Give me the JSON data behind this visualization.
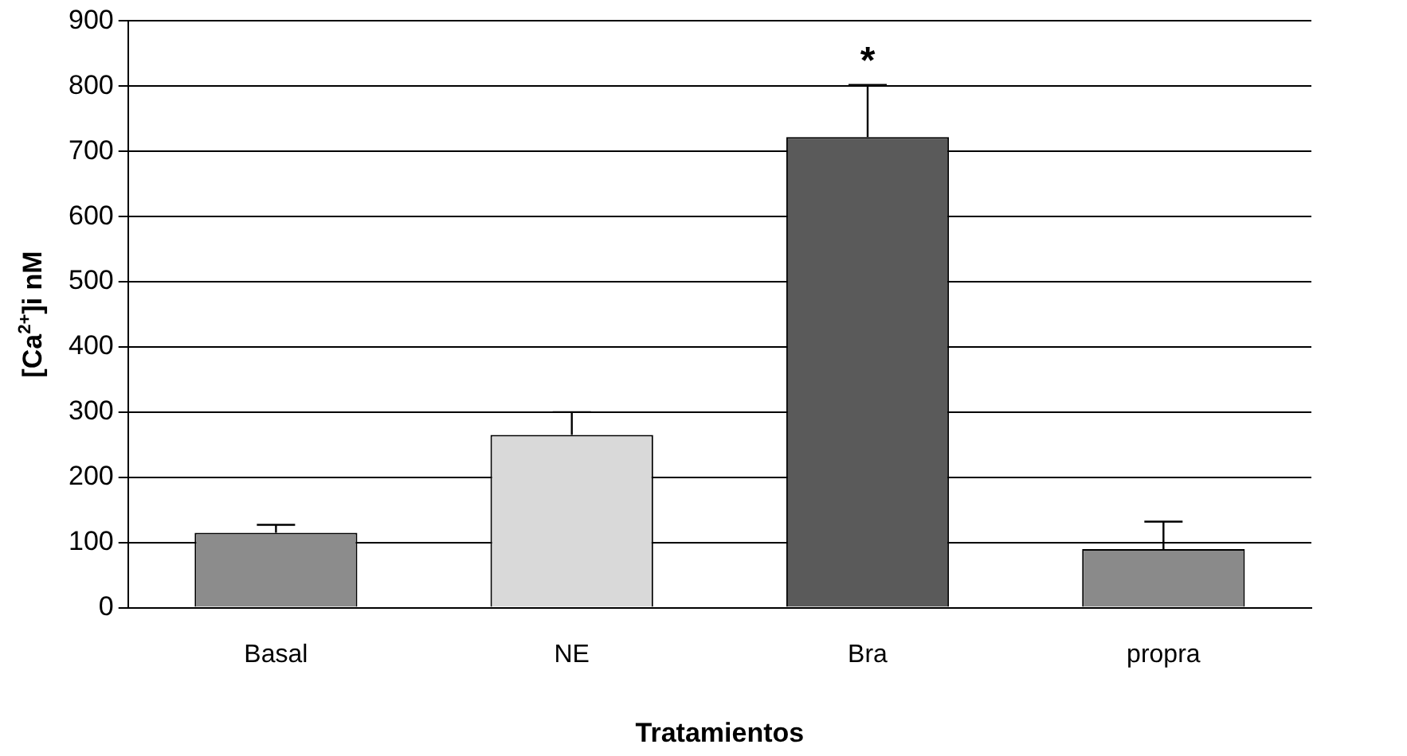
{
  "chart_data": {
    "type": "bar",
    "xlabel": "Tratamientos",
    "ylabel": "[Ca$^{2+}$]i nM",
    "categories": [
      "Basal",
      "NE",
      "Bra",
      "propra"
    ],
    "values": [
      115,
      265,
      722,
      90
    ],
    "errors": [
      [
        115,
        127
      ],
      [
        265,
        300
      ],
      [
        722,
        802
      ],
      [
        90,
        132
      ]
    ],
    "colors": [
      "#8c8c8c",
      "#d9d9d9",
      "#5a5a5a",
      "#8a8a8a"
    ],
    "ylim": [
      0,
      900
    ],
    "yticks": [
      0,
      100,
      200,
      300,
      400,
      500,
      600,
      700,
      800,
      900
    ],
    "grid": "y",
    "annotations": [
      "*"
    ]
  }
}
